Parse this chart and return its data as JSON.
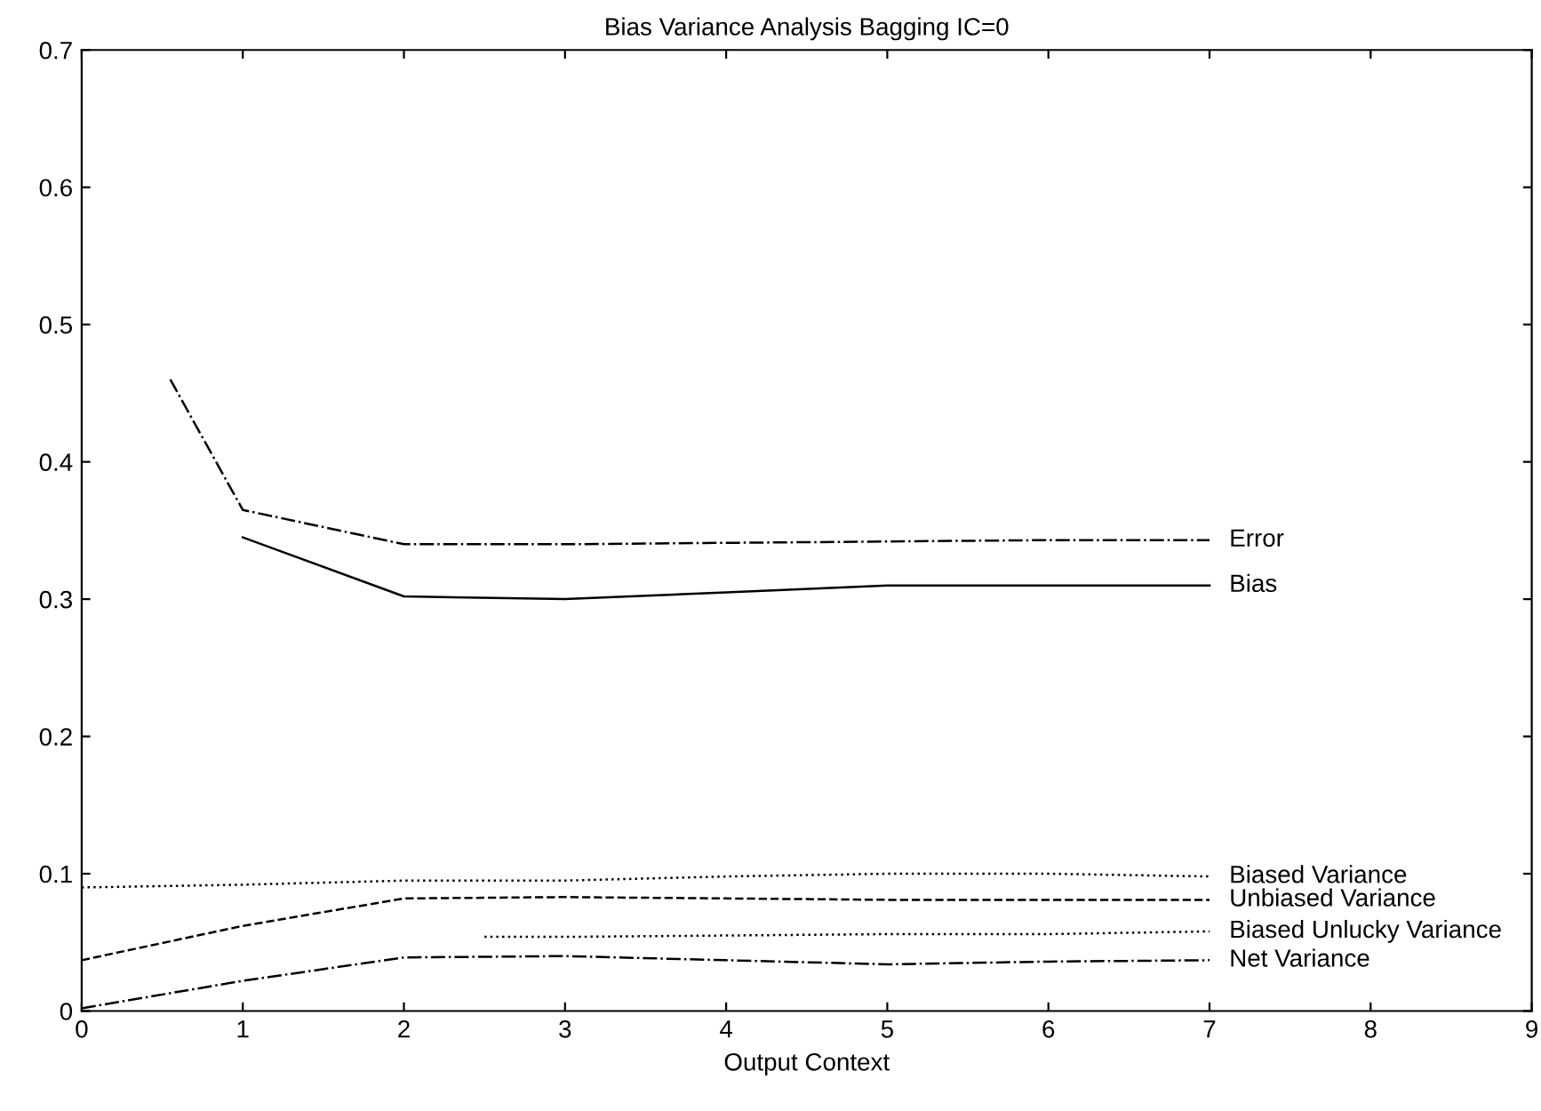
{
  "chart_data": {
    "type": "line",
    "title": "Bias Variance Analysis Bagging IC=0",
    "xlabel": "Output Context",
    "xlim": [
      0,
      9
    ],
    "ylim": [
      0,
      0.7
    ],
    "xticks": [
      0,
      1,
      2,
      3,
      4,
      5,
      6,
      7,
      8,
      9
    ],
    "yticks": [
      0,
      0.1,
      0.2,
      0.3,
      0.4,
      0.5,
      0.6,
      0.7
    ],
    "grid": false,
    "legend": false,
    "marker": "none",
    "series": [
      {
        "name": "Error",
        "color": "#000000",
        "line_style": "dashdot",
        "x": [
          0.55,
          1,
          2,
          3,
          4,
          5,
          6,
          7
        ],
        "values": [
          0.46,
          0.365,
          0.34,
          0.34,
          0.341,
          0.342,
          0.343,
          0.343
        ]
      },
      {
        "name": "Bias",
        "color": "#000000",
        "line_style": "solid",
        "x": [
          1,
          2,
          3,
          4,
          5,
          6,
          7
        ],
        "values": [
          0.345,
          0.302,
          0.3,
          0.305,
          0.31,
          0.31,
          0.31
        ]
      },
      {
        "name": "Biased Variance",
        "color": "#000000",
        "line_style": "dotted",
        "x": [
          0,
          1,
          2,
          3,
          4,
          5,
          6,
          7
        ],
        "values": [
          0.09,
          0.092,
          0.095,
          0.095,
          0.098,
          0.1,
          0.1,
          0.098
        ]
      },
      {
        "name": "Unbiased Variance",
        "color": "#000000",
        "line_style": "dashed",
        "x": [
          0,
          1,
          2,
          3,
          4,
          5,
          6,
          7
        ],
        "values": [
          0.037,
          0.062,
          0.082,
          0.083,
          0.082,
          0.081,
          0.081,
          0.081
        ]
      },
      {
        "name": "Biased Unlucky Variance",
        "color": "#000000",
        "line_style": "dotted",
        "x": [
          2.5,
          3,
          4,
          5,
          6,
          7
        ],
        "values": [
          0.054,
          0.054,
          0.055,
          0.056,
          0.056,
          0.058
        ]
      },
      {
        "name": "Net Variance",
        "color": "#000000",
        "line_style": "dashdot",
        "x": [
          0,
          1,
          2,
          3,
          4,
          5,
          6,
          7
        ],
        "values": [
          0.002,
          0.022,
          0.039,
          0.04,
          0.037,
          0.034,
          0.036,
          0.037
        ]
      }
    ]
  }
}
